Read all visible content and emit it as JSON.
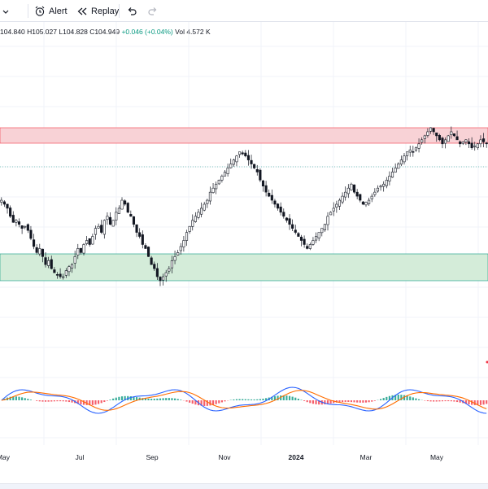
{
  "toolbar": {
    "alert_label": "Alert",
    "replay_label": "Replay"
  },
  "legend": {
    "open": "104.840",
    "high": "H105.027",
    "low": "L104.828",
    "close": "C104.949",
    "change": "+0.046 (+0.04%)",
    "volume": "Vol 4.572 K"
  },
  "time_axis": {
    "ticks": [
      "May",
      "Jul",
      "Sep",
      "Nov",
      "2024",
      "Mar",
      "May"
    ]
  },
  "colors": {
    "up": "#089981",
    "down": "#f23645",
    "resistance_zone": "#f8d2d6",
    "support_zone": "#d4ecd9",
    "macd_line": "#2962ff",
    "signal_line": "#ff6d00"
  },
  "chart_data": {
    "type": "candlestick",
    "close_series": [
      68,
      66,
      64,
      60,
      57,
      58,
      56,
      54,
      55,
      53,
      49,
      45,
      42,
      44,
      40,
      36,
      38,
      34,
      32,
      31,
      30,
      30,
      33,
      35,
      36,
      40,
      44,
      42,
      46,
      48,
      46,
      50,
      54,
      55,
      52,
      58,
      60,
      56,
      58,
      62,
      64,
      68,
      66,
      62,
      60,
      56,
      52,
      50,
      46,
      44,
      40,
      36,
      34,
      30,
      28,
      30,
      32,
      34,
      38,
      40,
      42,
      45,
      48,
      52,
      55,
      58,
      60,
      62,
      64,
      66,
      68,
      72,
      74,
      76,
      78,
      80,
      82,
      84,
      86,
      88,
      90,
      92,
      91,
      90,
      88,
      86,
      84,
      82,
      78,
      75,
      72,
      70,
      68,
      66,
      64,
      62,
      60,
      58,
      56,
      54,
      52,
      50,
      48,
      46,
      44,
      46,
      48,
      50,
      52,
      54,
      56,
      60,
      62,
      64,
      66,
      68,
      70,
      72,
      74,
      76,
      72,
      70,
      68,
      66,
      67,
      68,
      70,
      72,
      74,
      75,
      76,
      78,
      80,
      82,
      84,
      86,
      88,
      90,
      92,
      93,
      92,
      94,
      96,
      98,
      100,
      102,
      104,
      102,
      100,
      98,
      96,
      98,
      100,
      102,
      100,
      98,
      96,
      97,
      98,
      96,
      94,
      95,
      96,
      98,
      97,
      96
    ],
    "oscillator": {
      "series": [
        {
          "name": "MACD",
          "color": "#2962ff"
        },
        {
          "name": "Signal",
          "color": "#ff6d00"
        },
        {
          "name": "Histogram",
          "color": "#089981"
        }
      ]
    },
    "zones": [
      {
        "kind": "resistance",
        "color": "#f8d2d6"
      },
      {
        "kind": "support",
        "color": "#d4ecd9"
      }
    ]
  }
}
